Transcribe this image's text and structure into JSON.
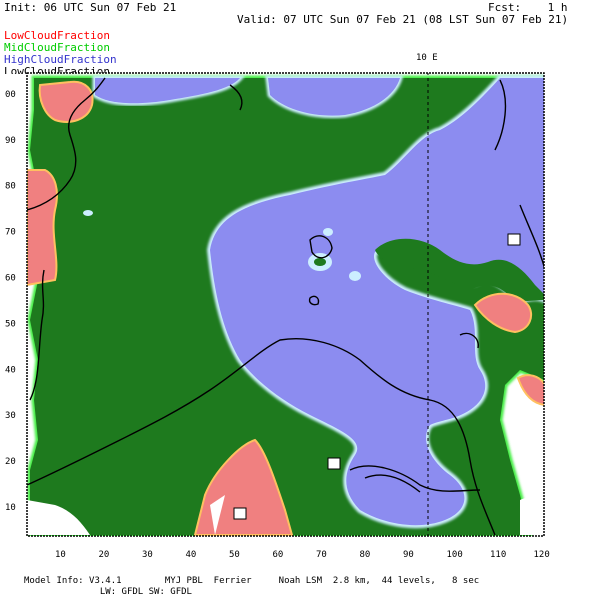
{
  "header": {
    "init": "Init: 06 UTC Sun 07 Feb 21",
    "fcst": "Fcst:    1 h",
    "valid": "Valid: 07 UTC Sun 07 Feb 21 (08 LST Sun 07 Feb 21)"
  },
  "legend": {
    "low": "LowCloudFraction",
    "mid": "MidCloudFraction",
    "high": "HighCloudFraction",
    "cut": "LowCloudFraction"
  },
  "meridian_label": "10 E",
  "x_ticks": [
    "10",
    "20",
    "30",
    "40",
    "50",
    "60",
    "70",
    "80",
    "90",
    "100",
    "110",
    "120"
  ],
  "y_ticks": [
    "10",
    "20",
    "30",
    "40",
    "50",
    "60",
    "70",
    "80",
    "90",
    "00"
  ],
  "footer": {
    "line1": "Model Info: V3.4.1        MYJ PBL  Ferrier     Noah LSM  2.8 km,  44 levels,   8 sec",
    "line2": "              LW: GFDL SW: GFDL"
  },
  "colors": {
    "low": "#f08080",
    "mid": "#1e7a1e",
    "high": "#8c8cf0",
    "mid_edge": "#44ee44",
    "high_edge": "#cceeff"
  }
}
